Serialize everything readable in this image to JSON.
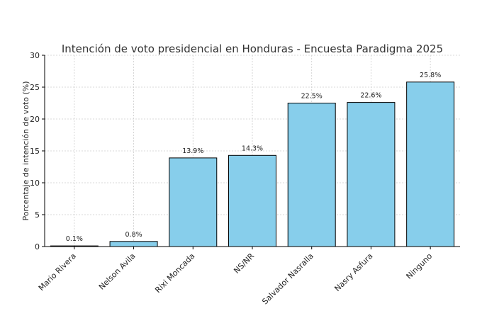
{
  "chart_data": {
    "type": "bar",
    "title": "Intención de voto presidencial en Honduras - Encuesta Paradigma 2025",
    "xlabel": "",
    "ylabel": "Porcentaje de intención de voto (%)",
    "categories": [
      "Mario Rivera",
      "Nelson Avila",
      "Rixi Moncada",
      "NS/NR",
      "Salvador Nasralla",
      "Nasry Asfura",
      "Ninguno"
    ],
    "values": [
      0.1,
      0.8,
      13.9,
      14.3,
      22.5,
      22.6,
      25.8
    ],
    "value_labels": [
      "0.1%",
      "0.8%",
      "13.9%",
      "14.3%",
      "22.5%",
      "22.6%",
      "25.8%"
    ],
    "ylim": [
      0,
      30
    ],
    "yticks": [
      0,
      5,
      10,
      15,
      20,
      25,
      30
    ],
    "grid": true,
    "bar_color": "#87ceeb",
    "edge_color": "#000000"
  }
}
